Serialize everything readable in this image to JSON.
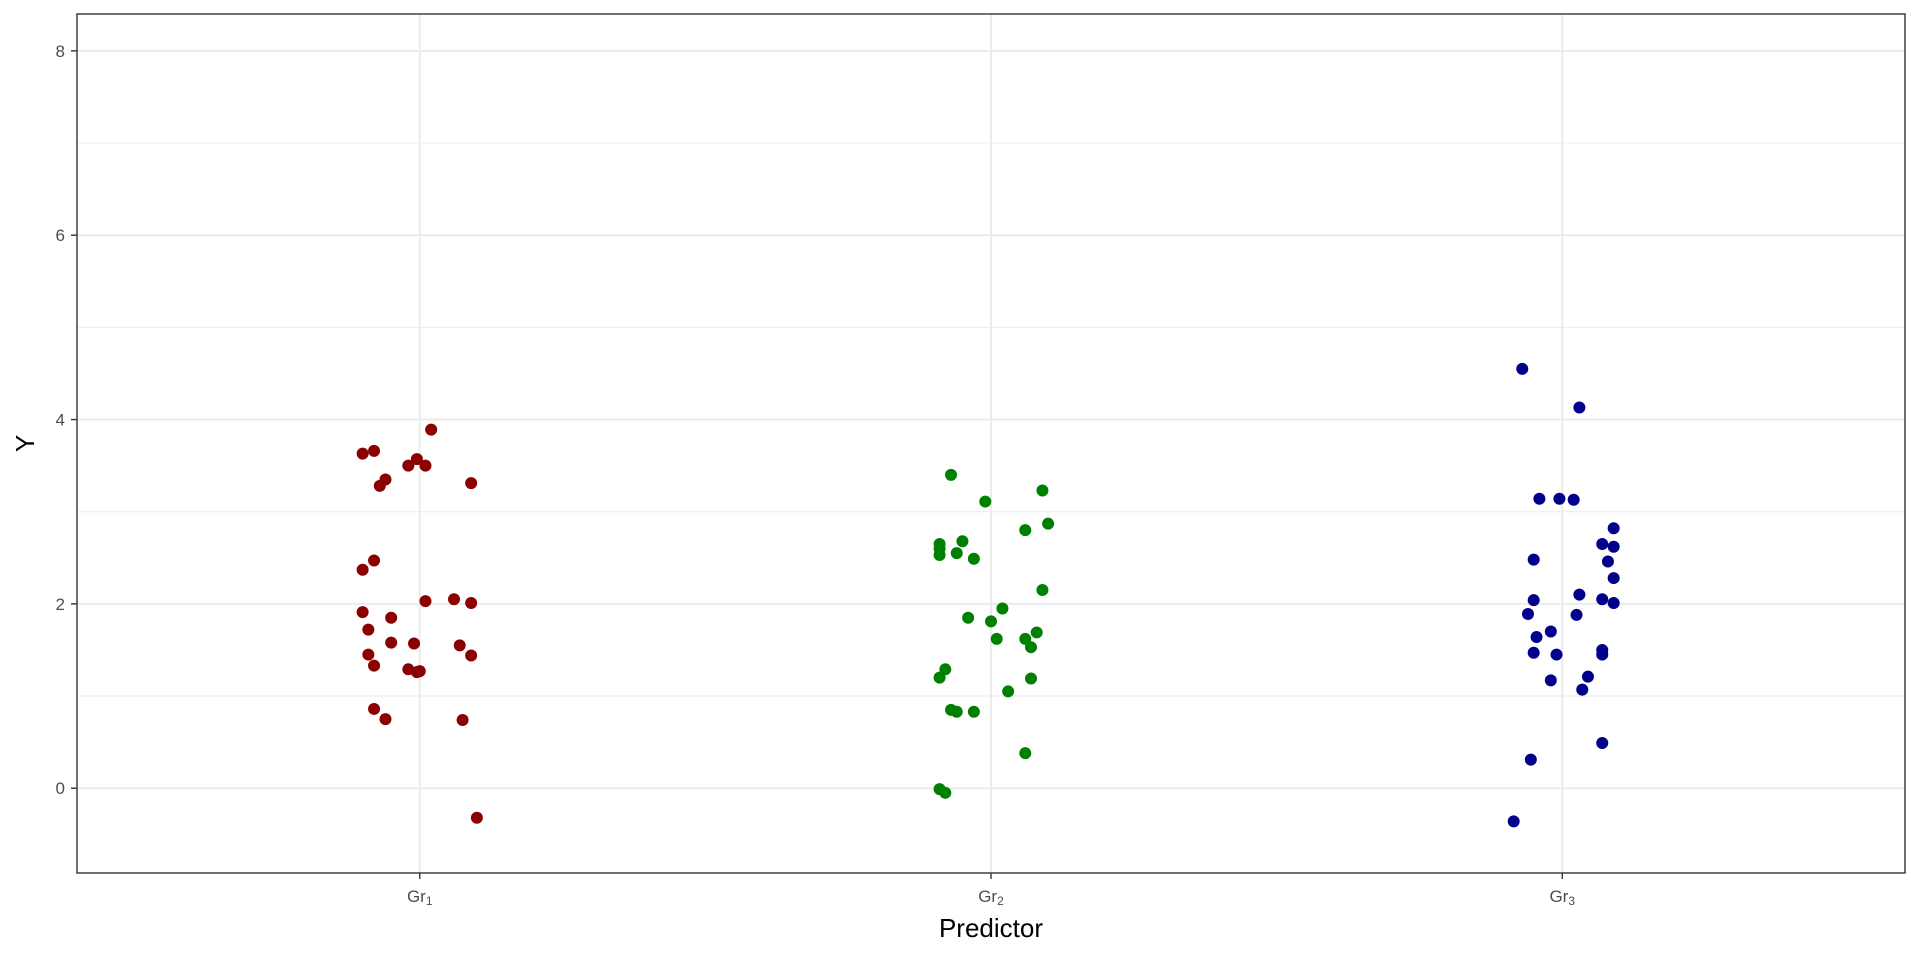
{
  "chart_data": {
    "type": "scatter",
    "xlabel": "Predictor",
    "ylabel": "Y",
    "ylim": [
      -0.92,
      8.4
    ],
    "yticks": [
      0,
      2,
      4,
      6,
      8
    ],
    "grid": true,
    "categories": [
      {
        "base": "Gr",
        "sub": "1"
      },
      {
        "base": "Gr",
        "sub": "2"
      },
      {
        "base": "Gr",
        "sub": "3"
      }
    ],
    "series": [
      {
        "color": "#8b0000",
        "points": [
          {
            "x": 0.9,
            "y": 3.63
          },
          {
            "x": 0.92,
            "y": 3.66
          },
          {
            "x": 0.94,
            "y": 3.35
          },
          {
            "x": 0.93,
            "y": 3.28
          },
          {
            "x": 0.98,
            "y": 3.5
          },
          {
            "x": 0.995,
            "y": 3.57
          },
          {
            "x": 1.01,
            "y": 3.5
          },
          {
            "x": 1.02,
            "y": 3.89
          },
          {
            "x": 1.09,
            "y": 3.31
          },
          {
            "x": 0.92,
            "y": 2.47
          },
          {
            "x": 0.9,
            "y": 2.37
          },
          {
            "x": 0.9,
            "y": 1.91
          },
          {
            "x": 0.95,
            "y": 1.85
          },
          {
            "x": 0.91,
            "y": 1.72
          },
          {
            "x": 0.95,
            "y": 1.58
          },
          {
            "x": 0.99,
            "y": 1.57
          },
          {
            "x": 1.01,
            "y": 2.03
          },
          {
            "x": 1.06,
            "y": 2.05
          },
          {
            "x": 1.09,
            "y": 2.01
          },
          {
            "x": 1.07,
            "y": 1.55
          },
          {
            "x": 1.09,
            "y": 1.44
          },
          {
            "x": 0.91,
            "y": 1.45
          },
          {
            "x": 0.92,
            "y": 1.33
          },
          {
            "x": 0.98,
            "y": 1.29
          },
          {
            "x": 0.995,
            "y": 1.26
          },
          {
            "x": 1.0,
            "y": 1.27
          },
          {
            "x": 0.92,
            "y": 0.86
          },
          {
            "x": 0.94,
            "y": 0.75
          },
          {
            "x": 1.075,
            "y": 0.74
          },
          {
            "x": 1.1,
            "y": -0.32
          }
        ]
      },
      {
        "color": "#008000",
        "points": [
          {
            "x": 1.93,
            "y": 3.4
          },
          {
            "x": 1.99,
            "y": 3.11
          },
          {
            "x": 2.09,
            "y": 3.23
          },
          {
            "x": 2.1,
            "y": 2.87
          },
          {
            "x": 2.06,
            "y": 2.8
          },
          {
            "x": 1.91,
            "y": 2.65
          },
          {
            "x": 1.91,
            "y": 2.6
          },
          {
            "x": 1.91,
            "y": 2.53
          },
          {
            "x": 1.94,
            "y": 2.55
          },
          {
            "x": 1.95,
            "y": 2.68
          },
          {
            "x": 1.97,
            "y": 2.49
          },
          {
            "x": 2.09,
            "y": 2.15
          },
          {
            "x": 2.02,
            "y": 1.95
          },
          {
            "x": 1.96,
            "y": 1.85
          },
          {
            "x": 2.0,
            "y": 1.81
          },
          {
            "x": 2.08,
            "y": 1.69
          },
          {
            "x": 2.06,
            "y": 1.62
          },
          {
            "x": 2.01,
            "y": 1.62
          },
          {
            "x": 2.07,
            "y": 1.53
          },
          {
            "x": 1.92,
            "y": 1.29
          },
          {
            "x": 1.91,
            "y": 1.2
          },
          {
            "x": 2.07,
            "y": 1.19
          },
          {
            "x": 2.03,
            "y": 1.05
          },
          {
            "x": 1.93,
            "y": 0.85
          },
          {
            "x": 1.94,
            "y": 0.83
          },
          {
            "x": 1.97,
            "y": 0.83
          },
          {
            "x": 2.06,
            "y": 0.38
          },
          {
            "x": 1.91,
            "y": -0.01
          },
          {
            "x": 1.92,
            "y": -0.05
          }
        ]
      },
      {
        "color": "#00008b",
        "points": [
          {
            "x": 2.93,
            "y": 4.55
          },
          {
            "x": 3.03,
            "y": 4.13
          },
          {
            "x": 2.96,
            "y": 3.14
          },
          {
            "x": 2.995,
            "y": 3.14
          },
          {
            "x": 3.02,
            "y": 3.13
          },
          {
            "x": 3.09,
            "y": 2.82
          },
          {
            "x": 3.07,
            "y": 2.65
          },
          {
            "x": 3.09,
            "y": 2.62
          },
          {
            "x": 2.95,
            "y": 2.48
          },
          {
            "x": 3.08,
            "y": 2.46
          },
          {
            "x": 3.09,
            "y": 2.28
          },
          {
            "x": 3.03,
            "y": 2.1
          },
          {
            "x": 2.95,
            "y": 2.04
          },
          {
            "x": 3.07,
            "y": 2.05
          },
          {
            "x": 3.09,
            "y": 2.01
          },
          {
            "x": 2.94,
            "y": 1.89
          },
          {
            "x": 3.025,
            "y": 1.88
          },
          {
            "x": 2.98,
            "y": 1.7
          },
          {
            "x": 2.955,
            "y": 1.64
          },
          {
            "x": 2.95,
            "y": 1.47
          },
          {
            "x": 2.99,
            "y": 1.45
          },
          {
            "x": 3.07,
            "y": 1.5
          },
          {
            "x": 3.07,
            "y": 1.45
          },
          {
            "x": 3.045,
            "y": 1.21
          },
          {
            "x": 2.98,
            "y": 1.17
          },
          {
            "x": 3.035,
            "y": 1.07
          },
          {
            "x": 3.07,
            "y": 0.49
          },
          {
            "x": 2.945,
            "y": 0.31
          },
          {
            "x": 2.915,
            "y": -0.36
          }
        ]
      }
    ]
  }
}
